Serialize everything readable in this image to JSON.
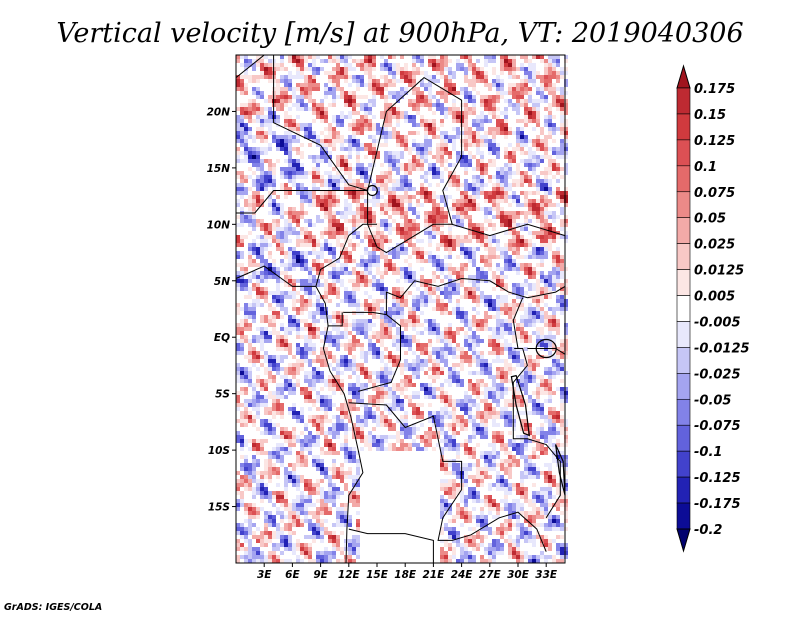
{
  "chart_data": {
    "type": "heatmap",
    "title": "Vertical velocity [m/s] at 900hPa, VT: 2019040306",
    "variable": "Vertical velocity",
    "units": "m/s",
    "level": "900hPa",
    "valid_time": "2019040306",
    "xlim": [
      0,
      35
    ],
    "ylim": [
      -20,
      25
    ],
    "x_ticks": [
      {
        "value": 3,
        "label": "3E"
      },
      {
        "value": 6,
        "label": "6E"
      },
      {
        "value": 9,
        "label": "9E"
      },
      {
        "value": 12,
        "label": "12E"
      },
      {
        "value": 15,
        "label": "15E"
      },
      {
        "value": 18,
        "label": "18E"
      },
      {
        "value": 21,
        "label": "21E"
      },
      {
        "value": 24,
        "label": "24E"
      },
      {
        "value": 27,
        "label": "27E"
      },
      {
        "value": 30,
        "label": "30E"
      },
      {
        "value": 33,
        "label": "33E"
      }
    ],
    "y_ticks": [
      {
        "value": 20,
        "label": "20N"
      },
      {
        "value": 15,
        "label": "15N"
      },
      {
        "value": 10,
        "label": "10N"
      },
      {
        "value": 5,
        "label": "5N"
      },
      {
        "value": 0,
        "label": "EQ"
      },
      {
        "value": -5,
        "label": "5S"
      },
      {
        "value": -10,
        "label": "10S"
      },
      {
        "value": -15,
        "label": "15S"
      }
    ],
    "colorbar": {
      "labels": [
        "0.175",
        "0.15",
        "0.125",
        "0.1",
        "0.075",
        "0.05",
        "0.025",
        "0.0125",
        "0.005",
        "-0.005",
        "-0.0125",
        "-0.025",
        "-0.05",
        "-0.075",
        "-0.1",
        "-0.125",
        "-0.175",
        "-0.2"
      ],
      "colors": [
        "#a0141e",
        "#be2a32",
        "#d03a3e",
        "#dc5054",
        "#e46a6a",
        "#ec8a88",
        "#f3aaa8",
        "#f8c8c6",
        "#fce6e4",
        "#ffffff",
        "#e8e8fc",
        "#c6c6f6",
        "#a4a4f0",
        "#8282e8",
        "#6262dc",
        "#4242cc",
        "#2222b4",
        "#0c0c96",
        "#02026e"
      ]
    }
  },
  "credit": "GrADS: IGES/COLA"
}
